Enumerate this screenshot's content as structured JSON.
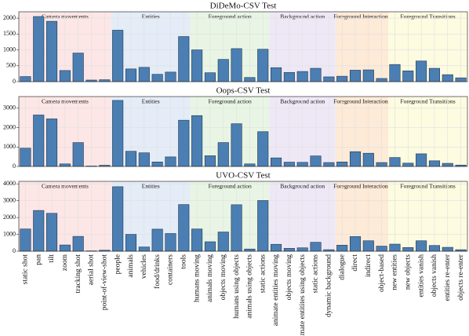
{
  "chart_data": {
    "type": "bar",
    "color": "#4b7fb3",
    "grid": true,
    "categories": [
      "static shot",
      "pan",
      "tilt",
      "zoom",
      "tracking shot",
      "aerial shot",
      "point-of-view-shot",
      "people",
      "animals",
      "vehicles",
      "food/drinks",
      "containers",
      "tools",
      "humans moving",
      "animals moving",
      "objects moving",
      "humans using objects",
      "animals using objects",
      "static actions",
      "animate entities moving",
      "objects moving",
      "animate entitites using objects",
      "static actions",
      "dynamic background",
      "dialogue",
      "direct",
      "indirect",
      "object-based",
      "new entities",
      "new objects",
      "entities vanish",
      "objects vanish",
      "entities re-enter",
      "objects re-enter"
    ],
    "groups": [
      {
        "name": "Camera movements",
        "count": 7,
        "color": "#fde6e6"
      },
      {
        "name": "Entities",
        "count": 6,
        "color": "#e4ecf7"
      },
      {
        "name": "Foreground action",
        "count": 6,
        "color": "#e8f5e4"
      },
      {
        "name": "Background action",
        "count": 5,
        "color": "#eee8f6"
      },
      {
        "name": "Foreground Interactions",
        "count": 4,
        "color": "#fdead7"
      },
      {
        "name": "Foreground Transitions",
        "count": 6,
        "color": "#fdfbe0"
      }
    ],
    "panels": [
      {
        "title": "DiDeMo-CSV Test",
        "ylim": [
          0,
          2200
        ],
        "yticks": [
          0,
          500,
          1000,
          1500,
          2000
        ],
        "values": [
          160,
          2050,
          1900,
          350,
          900,
          50,
          60,
          1620,
          400,
          450,
          230,
          300,
          1420,
          1000,
          280,
          700,
          1040,
          130,
          1020,
          440,
          290,
          320,
          420,
          150,
          170,
          360,
          370,
          100,
          540,
          340,
          650,
          420,
          220,
          120
        ]
      },
      {
        "title": "Oops-CSV Test",
        "ylim": [
          0,
          3600
        ],
        "yticks": [
          0,
          1000,
          2000,
          3000
        ],
        "values": [
          940,
          2650,
          2450,
          130,
          1230,
          20,
          60,
          3400,
          780,
          700,
          230,
          490,
          2380,
          2620,
          550,
          1230,
          2200,
          130,
          1790,
          440,
          220,
          210,
          540,
          200,
          230,
          760,
          680,
          200,
          460,
          170,
          650,
          290,
          160,
          70
        ]
      },
      {
        "title": "UVO-CSV Test",
        "ylim": [
          0,
          4150
        ],
        "yticks": [
          0,
          1000,
          2000,
          3000,
          4000
        ],
        "values": [
          1320,
          2420,
          2250,
          370,
          880,
          20,
          60,
          3830,
          1000,
          250,
          1310,
          1050,
          2770,
          1320,
          560,
          1140,
          2760,
          130,
          3010,
          410,
          170,
          200,
          530,
          90,
          360,
          870,
          620,
          300,
          420,
          220,
          620,
          340,
          230,
          90
        ]
      }
    ]
  }
}
